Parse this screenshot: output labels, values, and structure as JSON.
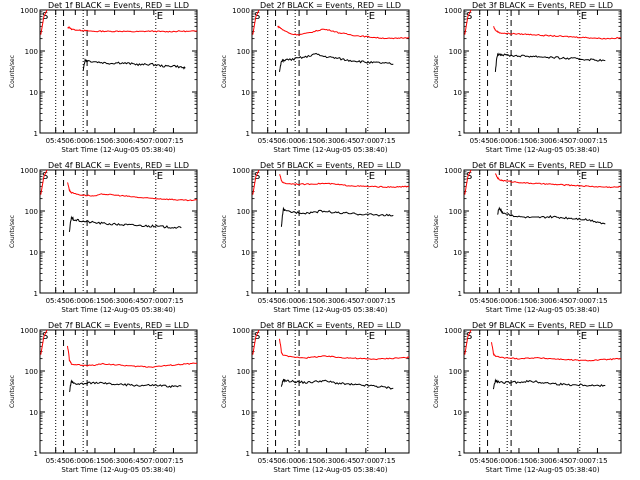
{
  "chart_data": [
    {
      "type": "line",
      "title": "Det 1f BLACK = Events, RED = LLD",
      "xlabel": "Start Time (12-Aug-05 05:38:40)",
      "ylabel": "Counts/sec",
      "yscale": "log",
      "ylim": [
        1,
        1000
      ],
      "x_ticks": [
        "05:45",
        "06:00",
        "06:15",
        "06:30",
        "06:45",
        "07:00",
        "07:15"
      ],
      "y_ticks": [
        "1",
        "10",
        "100",
        "1000"
      ],
      "markers": [
        "S",
        "E"
      ],
      "series": [
        {
          "color": "#ff0000",
          "x": [
            5,
            5.5,
            6,
            8,
            9,
            10,
            12,
            14,
            16,
            18,
            20,
            22,
            24,
            26,
            28,
            30,
            32,
            34,
            36,
            38
          ],
          "y": [
            360,
            380,
            340,
            320,
            315,
            310,
            300,
            305,
            300,
            305,
            300,
            295,
            300,
            305,
            300,
            295,
            300,
            305,
            300,
            310
          ]
        },
        {
          "color": "#000000",
          "x": [
            9,
            9.5,
            10,
            12,
            14,
            16,
            18,
            20,
            22,
            24,
            26,
            28,
            30,
            32,
            34,
            35
          ],
          "y": [
            35,
            60,
            58,
            55,
            52,
            50,
            52,
            50,
            48,
            46,
            48,
            45,
            42,
            44,
            40,
            38
          ]
        }
      ]
    },
    {
      "type": "line",
      "title": "Det 2f BLACK = Events, RED = LLD",
      "xlabel": "Start Time (12-Aug-05 05:38:40)",
      "ylabel": "Counts/sec",
      "yscale": "log",
      "ylim": [
        1,
        1000
      ],
      "x_ticks": [
        "05:45",
        "06:00",
        "06:15",
        "06:30",
        "06:45",
        "07:00",
        "07:15"
      ],
      "y_ticks": [
        "1",
        "10",
        "100",
        "1000"
      ],
      "markers": [
        "S",
        "E"
      ],
      "series": [
        {
          "color": "#ff0000",
          "x": [
            4.5,
            5,
            6,
            8,
            10,
            12,
            14,
            16,
            18,
            20,
            22,
            24,
            26,
            28,
            30,
            32,
            34,
            36,
            38
          ],
          "y": [
            400,
            380,
            320,
            260,
            250,
            270,
            300,
            340,
            320,
            280,
            260,
            240,
            230,
            220,
            210,
            205,
            200,
            210,
            215
          ]
        },
        {
          "color": "#000000",
          "x": [
            5,
            5.5,
            6,
            8,
            10,
            12,
            14,
            16,
            18,
            20,
            22,
            24,
            26,
            28,
            30,
            32,
            34
          ],
          "y": [
            30,
            55,
            60,
            62,
            68,
            72,
            85,
            75,
            70,
            66,
            60,
            58,
            55,
            52,
            52,
            50,
            48
          ]
        }
      ]
    },
    {
      "type": "line",
      "title": "Det 3f BLACK = Events, RED = LLD",
      "xlabel": "Start Time (12-Aug-05 05:38:40)",
      "ylabel": "Counts/sec",
      "yscale": "log",
      "ylim": [
        1,
        1000
      ],
      "x_ticks": [
        "05:45",
        "06:00",
        "06:15",
        "06:30",
        "06:45",
        "07:00",
        "07:15"
      ],
      "y_ticks": [
        "1",
        "10",
        "100",
        "1000"
      ],
      "markers": [
        "S",
        "E"
      ],
      "series": [
        {
          "color": "#ff0000",
          "x": [
            5.5,
            6,
            7,
            8,
            10,
            12,
            14,
            16,
            18,
            20,
            22,
            24,
            26,
            28,
            30,
            32,
            34,
            36,
            38
          ],
          "y": [
            400,
            320,
            280,
            270,
            265,
            260,
            255,
            250,
            240,
            235,
            230,
            225,
            220,
            215,
            210,
            205,
            200,
            205,
            210
          ]
        },
        {
          "color": "#000000",
          "x": [
            6,
            6.5,
            7,
            8,
            10,
            12,
            14,
            16,
            18,
            20,
            22,
            24,
            26,
            28,
            30,
            32,
            34
          ],
          "y": [
            30,
            80,
            85,
            80,
            78,
            76,
            75,
            74,
            72,
            70,
            68,
            66,
            65,
            63,
            62,
            60,
            58
          ]
        }
      ]
    },
    {
      "type": "line",
      "title": "Det 4f BLACK = Events, RED = LLD",
      "xlabel": "Start Time (12-Aug-05 05:38:40)",
      "ylabel": "Counts/sec",
      "yscale": "log",
      "ylim": [
        1,
        1000
      ],
      "x_ticks": [
        "05:45",
        "06:00",
        "06:15",
        "06:30",
        "06:45",
        "07:00",
        "07:15"
      ],
      "y_ticks": [
        "1",
        "10",
        "100",
        "1000"
      ],
      "markers": [
        "S",
        "E"
      ],
      "series": [
        {
          "color": "#ff0000",
          "x": [
            5,
            5.5,
            6,
            8,
            10,
            12,
            14,
            16,
            18,
            20,
            22,
            24,
            26,
            28,
            30,
            32,
            34,
            36,
            38
          ],
          "y": [
            500,
            320,
            280,
            250,
            240,
            230,
            260,
            250,
            240,
            230,
            220,
            210,
            205,
            200,
            195,
            190,
            185,
            180,
            185
          ]
        },
        {
          "color": "#000000",
          "x": [
            5.5,
            6,
            6.5,
            8,
            10,
            12,
            14,
            16,
            18,
            20,
            22,
            24,
            26,
            28,
            30,
            32,
            34
          ],
          "y": [
            30,
            70,
            62,
            58,
            55,
            52,
            50,
            48,
            47,
            46,
            45,
            44,
            43,
            42,
            41,
            40,
            39
          ]
        }
      ]
    },
    {
      "type": "line",
      "title": "Det 5f BLACK = Events, RED = LLD",
      "xlabel": "Start Time (12-Aug-05 05:38:40)",
      "ylabel": "Counts/sec",
      "yscale": "log",
      "ylim": [
        1,
        1000
      ],
      "x_ticks": [
        "05:45",
        "06:00",
        "06:15",
        "06:30",
        "06:45",
        "07:00",
        "07:15"
      ],
      "y_ticks": [
        "1",
        "10",
        "100",
        "1000"
      ],
      "markers": [
        "S",
        "E"
      ],
      "series": [
        {
          "color": "#ff0000",
          "x": [
            5,
            5.5,
            6,
            8,
            10,
            12,
            14,
            16,
            18,
            20,
            22,
            24,
            26,
            28,
            30,
            32,
            34,
            36,
            38
          ],
          "y": [
            800,
            550,
            480,
            460,
            455,
            450,
            460,
            470,
            460,
            440,
            420,
            410,
            400,
            395,
            390,
            385,
            380,
            390,
            400
          ]
        },
        {
          "color": "#000000",
          "x": [
            5.5,
            6,
            6.5,
            8,
            10,
            12,
            14,
            16,
            18,
            20,
            22,
            24,
            26,
            28,
            30,
            32,
            34
          ],
          "y": [
            40,
            110,
            100,
            95,
            92,
            90,
            95,
            100,
            95,
            90,
            88,
            85,
            84,
            82,
            80,
            79,
            78
          ]
        }
      ]
    },
    {
      "type": "line",
      "title": "Det 6f BLACK = Events, RED = LLD",
      "xlabel": "Start Time (12-Aug-05 05:38:40)",
      "ylabel": "Counts/sec",
      "yscale": "log",
      "ylim": [
        1,
        1000
      ],
      "x_ticks": [
        "05:45",
        "06:00",
        "06:15",
        "06:30",
        "06:45",
        "07:00",
        "07:15"
      ],
      "y_ticks": [
        "1",
        "10",
        "100",
        "1000"
      ],
      "markers": [
        "S",
        "E"
      ],
      "series": [
        {
          "color": "#ff0000",
          "x": [
            6,
            6.5,
            7,
            8,
            10,
            12,
            14,
            16,
            18,
            20,
            22,
            24,
            26,
            28,
            30,
            32,
            34,
            36,
            38
          ],
          "y": [
            800,
            650,
            580,
            550,
            520,
            500,
            480,
            470,
            460,
            450,
            440,
            430,
            420,
            410,
            400,
            390,
            385,
            380,
            390
          ]
        },
        {
          "color": "#000000",
          "x": [
            6.5,
            7,
            7.5,
            8,
            10,
            12,
            14,
            16,
            18,
            20,
            22,
            24,
            26,
            28,
            30,
            32,
            34
          ],
          "y": [
            80,
            120,
            100,
            90,
            80,
            72,
            70,
            68,
            70,
            72,
            70,
            68,
            66,
            64,
            60,
            55,
            48
          ]
        }
      ]
    },
    {
      "type": "line",
      "title": "Det 7f BLACK = Events, RED = LLD",
      "xlabel": "Start Time (12-Aug-05 05:38:40)",
      "ylabel": "Counts/sec",
      "yscale": "log",
      "ylim": [
        1,
        1000
      ],
      "x_ticks": [
        "05:45",
        "06:00",
        "06:15",
        "06:30",
        "06:45",
        "07:00",
        "07:15"
      ],
      "y_ticks": [
        "1",
        "10",
        "100",
        "1000"
      ],
      "markers": [
        "S",
        "E"
      ],
      "series": [
        {
          "color": "#ff0000",
          "x": [
            5,
            5.5,
            6,
            8,
            10,
            12,
            14,
            16,
            18,
            20,
            22,
            24,
            26,
            28,
            30,
            32,
            34,
            36,
            38
          ],
          "y": [
            400,
            180,
            150,
            140,
            135,
            140,
            150,
            145,
            140,
            135,
            130,
            130,
            125,
            130,
            135,
            140,
            145,
            150,
            155
          ]
        },
        {
          "color": "#000000",
          "x": [
            5.5,
            6,
            6.5,
            8,
            10,
            12,
            14,
            16,
            18,
            20,
            22,
            24,
            26,
            28,
            30,
            32,
            34
          ],
          "y": [
            30,
            55,
            50,
            48,
            50,
            52,
            50,
            48,
            47,
            46,
            45,
            44,
            45,
            44,
            43,
            42,
            42
          ]
        }
      ]
    },
    {
      "type": "line",
      "title": "Det 8f BLACK = Events, RED = LLD",
      "xlabel": "Start Time (12-Aug-05 05:38:40)",
      "ylabel": "Counts/sec",
      "yscale": "log",
      "ylim": [
        1,
        1000
      ],
      "x_ticks": [
        "05:45",
        "06:00",
        "06:15",
        "06:30",
        "06:45",
        "07:00",
        "07:15"
      ],
      "y_ticks": [
        "1",
        "10",
        "100",
        "1000"
      ],
      "markers": [
        "S",
        "E"
      ],
      "series": [
        {
          "color": "#ff0000",
          "x": [
            5,
            5.5,
            6,
            8,
            10,
            12,
            14,
            16,
            18,
            20,
            22,
            24,
            26,
            28,
            30,
            32,
            34,
            36,
            38
          ],
          "y": [
            600,
            280,
            240,
            220,
            215,
            210,
            220,
            230,
            225,
            215,
            210,
            205,
            200,
            195,
            195,
            200,
            205,
            210,
            215
          ]
        },
        {
          "color": "#000000",
          "x": [
            5.5,
            6,
            6.5,
            8,
            10,
            12,
            14,
            16,
            18,
            20,
            22,
            24,
            26,
            28,
            30,
            32,
            34
          ],
          "y": [
            40,
            62,
            58,
            56,
            54,
            52,
            55,
            58,
            54,
            50,
            48,
            46,
            45,
            44,
            42,
            40,
            38
          ]
        }
      ]
    },
    {
      "type": "line",
      "title": "Det 9f BLACK = Events, RED = LLD",
      "xlabel": "Start Time (12-Aug-05 05:38:40)",
      "ylabel": "Counts/sec",
      "yscale": "log",
      "ylim": [
        1,
        1000
      ],
      "x_ticks": [
        "05:45",
        "06:00",
        "06:15",
        "06:30",
        "06:45",
        "07:00",
        "07:15"
      ],
      "y_ticks": [
        "1",
        "10",
        "100",
        "1000"
      ],
      "markers": [
        "S",
        "E"
      ],
      "series": [
        {
          "color": "#ff0000",
          "x": [
            5,
            5.5,
            6,
            8,
            10,
            12,
            14,
            16,
            18,
            20,
            22,
            24,
            26,
            28,
            30,
            32,
            34,
            36,
            38
          ],
          "y": [
            500,
            260,
            230,
            210,
            205,
            200,
            205,
            210,
            205,
            200,
            195,
            190,
            185,
            180,
            180,
            185,
            190,
            195,
            200
          ]
        },
        {
          "color": "#000000",
          "x": [
            5.5,
            6,
            6.5,
            8,
            10,
            12,
            14,
            16,
            18,
            20,
            22,
            24,
            26,
            28,
            30,
            32,
            34
          ],
          "y": [
            35,
            58,
            55,
            52,
            52,
            54,
            56,
            55,
            52,
            50,
            48,
            47,
            46,
            46,
            45,
            44,
            44
          ]
        }
      ]
    }
  ]
}
